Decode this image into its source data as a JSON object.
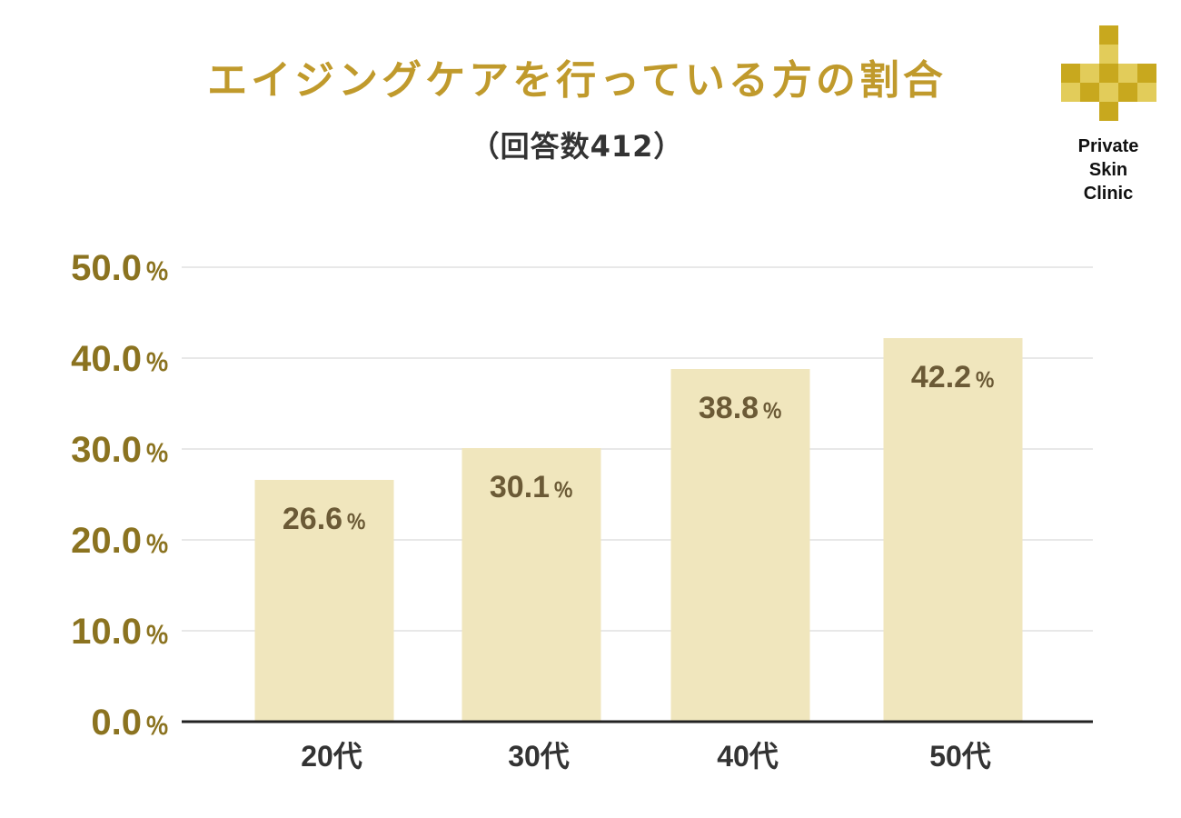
{
  "header": {
    "title": "エイジングケアを行っている方の割合",
    "subtitle": "（回答数412）"
  },
  "logo": {
    "name": "plus-cross-logo",
    "lines": [
      "Private",
      "Skin",
      "Clinic"
    ],
    "colors": [
      "#c8a81e",
      "#e2cc5a"
    ]
  },
  "chart_data": {
    "type": "bar",
    "categories": [
      "20代",
      "30代",
      "40代",
      "50代"
    ],
    "values": [
      26.6,
      30.1,
      38.8,
      42.2
    ],
    "value_unit": "％",
    "ylim": [
      0,
      50
    ],
    "yticks": [
      0,
      10,
      20,
      30,
      40,
      50
    ],
    "ytick_labels": [
      "0.0",
      "10.0",
      "20.0",
      "30.0",
      "40.0",
      "50.0"
    ],
    "ytick_unit": "％",
    "grid": true,
    "bar_color": "#f0e6bd",
    "axis_color": "#222222",
    "grid_color": "#d0d0d0"
  }
}
